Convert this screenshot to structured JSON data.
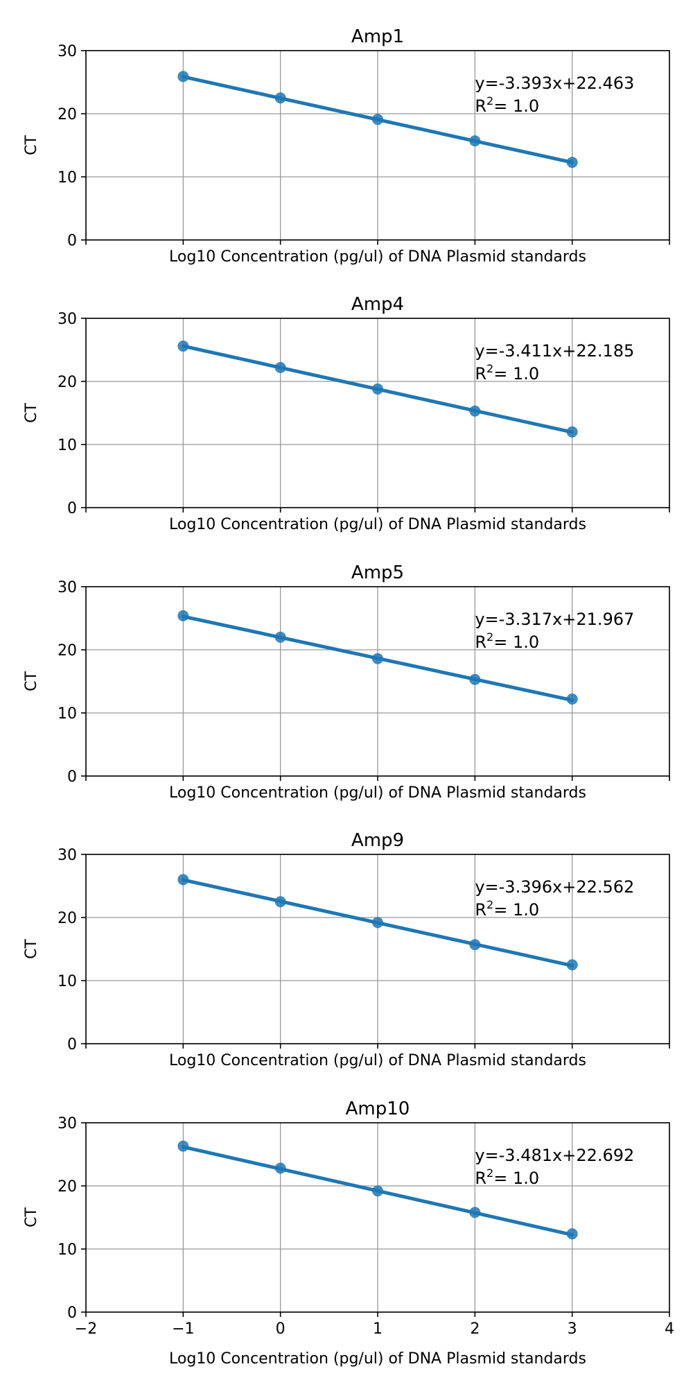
{
  "chart_data": [
    {
      "type": "scatter",
      "title": "Amp1",
      "xlabel": "Log10 Concentration (pg/ul) of DNA Plasmid standards",
      "ylabel": "CT",
      "xlim": [
        -2,
        4
      ],
      "ylim": [
        0,
        30
      ],
      "xticks": [
        -2,
        -1,
        0,
        1,
        2,
        3,
        4
      ],
      "xtick_labels_visible": false,
      "yticks": [
        0,
        10,
        20,
        30
      ],
      "grid": true,
      "x": [
        -1,
        0,
        1,
        2,
        3
      ],
      "y": [
        25.9,
        22.5,
        19.1,
        15.7,
        12.3
      ],
      "fit": {
        "slope": -3.393,
        "intercept": 22.463
      },
      "annotation": {
        "equation": "y=-3.393x+22.463",
        "r2_label": "R",
        "r2_sup": "2",
        "r2_value": "= 1.0"
      }
    },
    {
      "type": "scatter",
      "title": "Amp4",
      "xlabel": "Log10 Concentration (pg/ul) of DNA Plasmid standards",
      "ylabel": "CT",
      "xlim": [
        -2,
        4
      ],
      "ylim": [
        0,
        30
      ],
      "xticks": [
        -2,
        -1,
        0,
        1,
        2,
        3,
        4
      ],
      "xtick_labels_visible": false,
      "yticks": [
        0,
        10,
        20,
        30
      ],
      "grid": true,
      "x": [
        -1,
        0,
        1,
        2,
        3
      ],
      "y": [
        25.6,
        22.2,
        18.8,
        15.3,
        12.0
      ],
      "fit": {
        "slope": -3.411,
        "intercept": 22.185
      },
      "annotation": {
        "equation": "y=-3.411x+22.185",
        "r2_label": "R",
        "r2_sup": "2",
        "r2_value": "= 1.0"
      }
    },
    {
      "type": "scatter",
      "title": "Amp5",
      "xlabel": "Log10 Concentration (pg/ul) of DNA Plasmid standards",
      "ylabel": "CT",
      "xlim": [
        -2,
        4
      ],
      "ylim": [
        0,
        30
      ],
      "xticks": [
        -2,
        -1,
        0,
        1,
        2,
        3,
        4
      ],
      "xtick_labels_visible": false,
      "yticks": [
        0,
        10,
        20,
        30
      ],
      "grid": true,
      "x": [
        -1,
        0,
        1,
        2,
        3
      ],
      "y": [
        25.4,
        22.0,
        18.6,
        15.3,
        12.2
      ],
      "fit": {
        "slope": -3.317,
        "intercept": 21.967
      },
      "annotation": {
        "equation": "y=-3.317x+21.967",
        "r2_label": "R",
        "r2_sup": "2",
        "r2_value": "= 1.0"
      }
    },
    {
      "type": "scatter",
      "title": "Amp9",
      "xlabel": "Log10 Concentration (pg/ul) of DNA Plasmid standards",
      "ylabel": "CT",
      "xlim": [
        -2,
        4
      ],
      "ylim": [
        0,
        30
      ],
      "xticks": [
        -2,
        -1,
        0,
        1,
        2,
        3,
        4
      ],
      "xtick_labels_visible": false,
      "yticks": [
        0,
        10,
        20,
        30
      ],
      "grid": true,
      "x": [
        -1,
        0,
        1,
        2,
        3
      ],
      "y": [
        26.0,
        22.5,
        19.2,
        15.7,
        12.5
      ],
      "fit": {
        "slope": -3.396,
        "intercept": 22.562
      },
      "annotation": {
        "equation": "y=-3.396x+22.562",
        "r2_label": "R",
        "r2_sup": "2",
        "r2_value": "= 1.0"
      }
    },
    {
      "type": "scatter",
      "title": "Amp10",
      "xlabel": "Log10 Concentration (pg/ul) of DNA Plasmid standards",
      "ylabel": "CT",
      "xlim": [
        -2,
        4
      ],
      "ylim": [
        0,
        30
      ],
      "xticks": [
        -2,
        -1,
        0,
        1,
        2,
        3,
        4
      ],
      "xtick_labels_visible": true,
      "yticks": [
        0,
        10,
        20,
        30
      ],
      "grid": true,
      "x": [
        -1,
        0,
        1,
        2,
        3
      ],
      "y": [
        26.3,
        22.8,
        19.2,
        15.8,
        12.4
      ],
      "fit": {
        "slope": -3.481,
        "intercept": 22.692
      },
      "annotation": {
        "equation": "y=-3.481x+22.692",
        "r2_label": "R",
        "r2_sup": "2",
        "r2_value": "= 1.0"
      }
    }
  ],
  "colors": {
    "series": "#1f77b4",
    "grid": "#999999",
    "axes": "#000000"
  }
}
